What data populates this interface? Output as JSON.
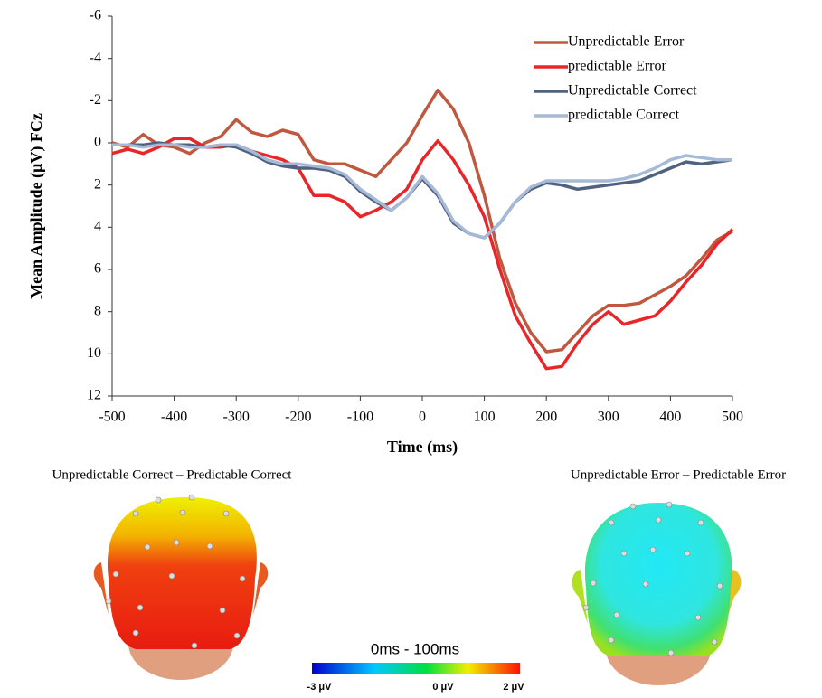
{
  "chart_data": {
    "type": "line",
    "x_label": "Time (ms)",
    "y_label": "Mean Amplitude (μV) FCz",
    "x": [
      -500,
      -475,
      -450,
      -425,
      -400,
      -375,
      -350,
      -325,
      -300,
      -275,
      -250,
      -225,
      -200,
      -175,
      -150,
      -125,
      -100,
      -75,
      -50,
      -25,
      0,
      25,
      50,
      75,
      100,
      125,
      150,
      175,
      200,
      225,
      250,
      275,
      300,
      325,
      350,
      375,
      400,
      425,
      450,
      475,
      500
    ],
    "series": [
      {
        "name": "Unpredictable Error",
        "color": "#c0583f",
        "values": [
          0,
          0.2,
          -0.4,
          0.1,
          0.2,
          0.5,
          0,
          -0.3,
          -1.1,
          -0.5,
          -0.3,
          -0.6,
          -0.4,
          0.8,
          1.0,
          1.0,
          1.3,
          1.6,
          0.8,
          0,
          -1.3,
          -2.5,
          -1.6,
          0,
          2.5,
          5.5,
          7.6,
          9.0,
          9.9,
          9.8,
          9.0,
          8.2,
          7.7,
          7.7,
          7.6,
          7.2,
          6.8,
          6.3,
          5.5,
          4.6,
          4.2
        ]
      },
      {
        "name": "predictable Error",
        "color": "#e8262a",
        "values": [
          0.5,
          0.3,
          0.5,
          0.2,
          -0.2,
          -0.2,
          0.2,
          0.2,
          0.1,
          0.4,
          0.6,
          0.8,
          1.2,
          2.5,
          2.5,
          2.8,
          3.5,
          3.2,
          2.8,
          2.2,
          0.8,
          -0.1,
          0.8,
          2.0,
          3.5,
          6.0,
          8.2,
          9.5,
          10.7,
          10.6,
          9.5,
          8.6,
          8.0,
          8.6,
          8.4,
          8.2,
          7.5,
          6.6,
          5.8,
          4.8,
          4.1
        ]
      },
      {
        "name": "Unpredictable Correct",
        "color": "#4f6280",
        "values": [
          0.1,
          0.1,
          0.1,
          0,
          0.1,
          0.1,
          0.2,
          0.1,
          0.2,
          0.5,
          0.9,
          1.1,
          1.2,
          1.2,
          1.3,
          1.6,
          2.3,
          2.8,
          3.2,
          2.6,
          1.7,
          2.5,
          3.8,
          4.3,
          4.5,
          3.8,
          2.8,
          2.2,
          1.9,
          2.0,
          2.2,
          2.1,
          2.0,
          1.9,
          1.8,
          1.5,
          1.2,
          0.9,
          1.0,
          0.9,
          0.8
        ]
      },
      {
        "name": "predictable Correct",
        "color": "#a6b9d6",
        "values": [
          0.1,
          0.1,
          0.2,
          0.1,
          0.1,
          0.2,
          0.2,
          0.1,
          0.1,
          0.4,
          0.8,
          1.0,
          1.0,
          1.1,
          1.2,
          1.5,
          2.2,
          2.7,
          3.2,
          2.6,
          1.6,
          2.4,
          3.7,
          4.3,
          4.5,
          3.8,
          2.8,
          2.1,
          1.8,
          1.8,
          1.8,
          1.8,
          1.8,
          1.7,
          1.5,
          1.2,
          0.8,
          0.6,
          0.7,
          0.8,
          0.8
        ]
      }
    ],
    "xlim": [
      -500,
      500
    ],
    "xticks": [
      -500,
      -400,
      -300,
      -200,
      -100,
      0,
      100,
      200,
      300,
      400,
      500
    ],
    "ylim": [
      -6,
      12
    ],
    "yticks": [
      -6,
      -4,
      -2,
      0,
      2,
      4,
      6,
      8,
      10,
      12
    ],
    "y_reversed": true,
    "legend": "top-right"
  },
  "scalp_maps": {
    "left_title": "Unpredictable Correct – Predictable Correct",
    "right_title": "Unpredictable Error – Predictable Error",
    "time_window": "0ms - 100ms",
    "colorbar_labels": [
      "-3 μV",
      "0 μV",
      "2 μV"
    ]
  }
}
